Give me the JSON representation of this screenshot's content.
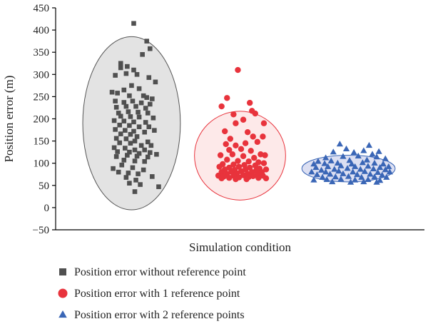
{
  "chart_data": {
    "type": "scatter",
    "xlabel": "Simulation condition",
    "ylabel": "Position error (m)",
    "ylim": [
      -50,
      450
    ],
    "yticks": [
      -50,
      0,
      50,
      100,
      150,
      200,
      250,
      300,
      350,
      400,
      450
    ],
    "grid": false,
    "legend_placement": "bottom-left",
    "series": [
      {
        "name": "Position error without reference point",
        "marker": "square",
        "color": "#505050",
        "ellipse": {
          "x_center": 1,
          "y_center": 190,
          "y_half_range": 195,
          "fill": "#e3e3e3",
          "stroke": "#555555"
        },
        "points": [
          [
            1.02,
            415
          ],
          [
            1.14,
            375
          ],
          [
            1.17,
            358
          ],
          [
            0.9,
            325
          ],
          [
            0.96,
            318
          ],
          [
            1.1,
            345
          ],
          [
            0.9,
            315
          ],
          [
            1.02,
            310
          ],
          [
            0.85,
            298
          ],
          [
            0.95,
            302
          ],
          [
            1.05,
            300
          ],
          [
            1.16,
            293
          ],
          [
            1.22,
            283
          ],
          [
            1.0,
            275
          ],
          [
            0.93,
            265
          ],
          [
            0.82,
            260
          ],
          [
            1.07,
            268
          ],
          [
            0.87,
            258
          ],
          [
            0.98,
            252
          ],
          [
            1.11,
            252
          ],
          [
            1.14,
            248
          ],
          [
            1.19,
            245
          ],
          [
            0.85,
            240
          ],
          [
            0.93,
            237
          ],
          [
            1.01,
            240
          ],
          [
            1.09,
            236
          ],
          [
            1.17,
            233
          ],
          [
            0.86,
            226
          ],
          [
            0.95,
            228
          ],
          [
            1.04,
            228
          ],
          [
            1.13,
            224
          ],
          [
            0.88,
            213
          ],
          [
            0.97,
            216
          ],
          [
            1.06,
            215
          ],
          [
            1.15,
            213
          ],
          [
            0.9,
            206
          ],
          [
            0.99,
            205
          ],
          [
            1.07,
            204
          ],
          [
            1.2,
            202
          ],
          [
            0.84,
            196
          ],
          [
            0.93,
            195
          ],
          [
            1.02,
            193
          ],
          [
            1.13,
            192
          ],
          [
            0.89,
            186
          ],
          [
            0.98,
            185
          ],
          [
            1.07,
            182
          ],
          [
            1.16,
            182
          ],
          [
            0.85,
            176
          ],
          [
            0.94,
            174
          ],
          [
            1.02,
            172
          ],
          [
            1.12,
            170
          ],
          [
            1.21,
            174
          ],
          [
            0.9,
            166
          ],
          [
            0.99,
            165
          ],
          [
            1.05,
            160
          ],
          [
            0.86,
            156
          ],
          [
            0.95,
            155
          ],
          [
            1.03,
            150
          ],
          [
            1.15,
            148
          ],
          [
            0.89,
            146
          ],
          [
            0.99,
            145
          ],
          [
            1.09,
            140
          ],
          [
            1.18,
            140
          ],
          [
            0.84,
            135
          ],
          [
            0.94,
            134
          ],
          [
            1.03,
            130
          ],
          [
            1.12,
            130
          ],
          [
            0.87,
            126
          ],
          [
            0.98,
            125
          ],
          [
            1.07,
            122
          ],
          [
            1.17,
            124
          ],
          [
            1.23,
            120
          ],
          [
            0.86,
            115
          ],
          [
            0.96,
            118
          ],
          [
            1.05,
            116
          ],
          [
            1.15,
            114
          ],
          [
            0.93,
            107
          ],
          [
            1.03,
            105
          ],
          [
            1.12,
            104
          ],
          [
            0.83,
            88
          ],
          [
            0.91,
            96
          ],
          [
            1.01,
            90
          ],
          [
            1.11,
            85
          ],
          [
            0.88,
            80
          ],
          [
            0.97,
            78
          ],
          [
            1.06,
            76
          ],
          [
            1.19,
            70
          ],
          [
            0.95,
            68
          ],
          [
            1.04,
            62
          ],
          [
            0.98,
            55
          ],
          [
            1.08,
            52
          ],
          [
            1.25,
            47
          ],
          [
            1.03,
            36
          ]
        ]
      },
      {
        "name": "Position error with 1 reference point",
        "marker": "circle",
        "color": "#e8333c",
        "ellipse": {
          "x_center": 2,
          "y_center": 117,
          "y_half_range": 100,
          "fill": "#fde9e9",
          "stroke": "#e8333c"
        },
        "points": [
          [
            1.98,
            310
          ],
          [
            1.88,
            247
          ],
          [
            1.83,
            228
          ],
          [
            2.09,
            236
          ],
          [
            2.11,
            218
          ],
          [
            2.14,
            212
          ],
          [
            2.22,
            190
          ],
          [
            1.94,
            210
          ],
          [
            2.03,
            198
          ],
          [
            1.96,
            190
          ],
          [
            1.86,
            172
          ],
          [
            2.07,
            170
          ],
          [
            2.21,
            160
          ],
          [
            2.12,
            160
          ],
          [
            1.91,
            155
          ],
          [
            1.87,
            143
          ],
          [
            1.96,
            140
          ],
          [
            2.05,
            145
          ],
          [
            2.16,
            148
          ],
          [
            1.9,
            130
          ],
          [
            2.01,
            132
          ],
          [
            2.1,
            128
          ],
          [
            2.19,
            120
          ],
          [
            2.23,
            118
          ],
          [
            1.82,
            118
          ],
          [
            1.93,
            120
          ],
          [
            2.03,
            116
          ],
          [
            2.13,
            112
          ],
          [
            1.88,
            108
          ],
          [
            1.98,
            105
          ],
          [
            2.08,
            104
          ],
          [
            2.17,
            102
          ],
          [
            1.84,
            98
          ],
          [
            1.94,
            97
          ],
          [
            2.04,
            96
          ],
          [
            2.14,
            95
          ],
          [
            2.22,
            100
          ],
          [
            1.81,
            92
          ],
          [
            1.9,
            90
          ],
          [
            1.99,
            92
          ],
          [
            2.09,
            90
          ],
          [
            2.18,
            88
          ],
          [
            1.86,
            86
          ],
          [
            1.95,
            85
          ],
          [
            2.05,
            86
          ],
          [
            2.15,
            84
          ],
          [
            2.24,
            86
          ],
          [
            1.83,
            80
          ],
          [
            1.92,
            81
          ],
          [
            2.01,
            82
          ],
          [
            2.11,
            80
          ],
          [
            2.2,
            80
          ],
          [
            1.88,
            76
          ],
          [
            1.97,
            77
          ],
          [
            2.07,
            76
          ],
          [
            2.16,
            75
          ],
          [
            1.8,
            72
          ],
          [
            1.85,
            70
          ],
          [
            1.94,
            72
          ],
          [
            2.03,
            73
          ],
          [
            2.12,
            71
          ],
          [
            2.21,
            72
          ],
          [
            1.9,
            67
          ],
          [
            1.99,
            68
          ],
          [
            2.08,
            69
          ],
          [
            2.17,
            67
          ],
          [
            1.83,
            66
          ],
          [
            2.24,
            66
          ],
          [
            1.96,
            64
          ],
          [
            2.06,
            64
          ]
        ]
      },
      {
        "name": "Position error with 2 reference points",
        "marker": "triangle",
        "color": "#3a66b6",
        "ellipse": {
          "x_center": 3,
          "y_center": 88,
          "y_half_range": 30,
          "fill": "#dcdff2",
          "stroke": "#3a66b6"
        },
        "points": [
          [
            2.92,
            143
          ],
          [
            3.19,
            140
          ],
          [
            2.98,
            132
          ],
          [
            3.14,
            128
          ],
          [
            3.28,
            126
          ],
          [
            2.86,
            125
          ],
          [
            3.05,
            124
          ],
          [
            3.22,
            120
          ],
          [
            2.79,
            112
          ],
          [
            2.95,
            115
          ],
          [
            3.09,
            116
          ],
          [
            3.26,
            114
          ],
          [
            3.34,
            110
          ],
          [
            2.72,
            104
          ],
          [
            2.84,
            105
          ],
          [
            3.01,
            106
          ],
          [
            3.17,
            107
          ],
          [
            2.68,
            98
          ],
          [
            2.78,
            99
          ],
          [
            2.9,
            100
          ],
          [
            3.03,
            98
          ],
          [
            3.13,
            101
          ],
          [
            3.24,
            100
          ],
          [
            3.32,
            98
          ],
          [
            2.7,
            90
          ],
          [
            2.81,
            92
          ],
          [
            2.93,
            94
          ],
          [
            3.06,
            92
          ],
          [
            3.18,
            93
          ],
          [
            3.29,
            90
          ],
          [
            3.37,
            92
          ],
          [
            2.75,
            84
          ],
          [
            2.87,
            86
          ],
          [
            2.99,
            88
          ],
          [
            3.11,
            86
          ],
          [
            3.23,
            87
          ],
          [
            3.34,
            85
          ],
          [
            2.66,
            80
          ],
          [
            2.79,
            80
          ],
          [
            2.91,
            82
          ],
          [
            3.04,
            80
          ],
          [
            3.15,
            81
          ],
          [
            3.27,
            79
          ],
          [
            3.38,
            80
          ],
          [
            2.71,
            74
          ],
          [
            2.83,
            75
          ],
          [
            2.95,
            76
          ],
          [
            3.08,
            74
          ],
          [
            3.2,
            75
          ],
          [
            3.31,
            73
          ],
          [
            2.76,
            68
          ],
          [
            2.88,
            69
          ],
          [
            3.0,
            70
          ],
          [
            3.12,
            68
          ],
          [
            3.24,
            69
          ],
          [
            3.35,
            68
          ],
          [
            2.68,
            62
          ],
          [
            2.8,
            63
          ],
          [
            2.93,
            64
          ],
          [
            3.06,
            62
          ],
          [
            3.18,
            63
          ],
          [
            3.29,
            61
          ],
          [
            2.85,
            58
          ],
          [
            3.02,
            57
          ],
          [
            3.14,
            58
          ],
          [
            3.26,
            57
          ]
        ]
      }
    ]
  }
}
